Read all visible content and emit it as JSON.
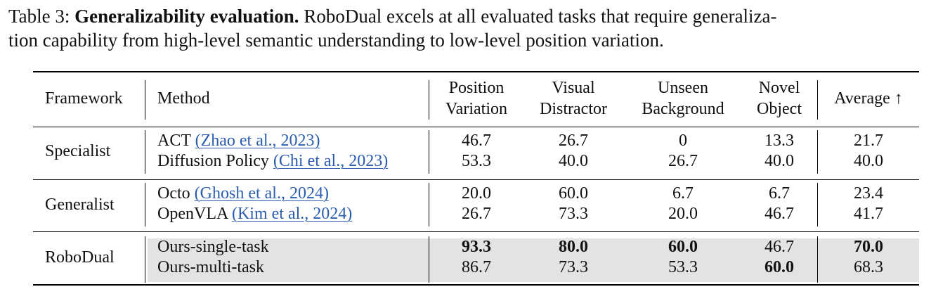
{
  "caption": {
    "prefix": "Table 3: ",
    "bold_title": "Generalizability evaluation.",
    "line1_rest": " RoboDual excels at all evaluated tasks that require generaliza-",
    "line2": "tion capability from high-level semantic understanding to low-level position variation."
  },
  "table": {
    "headers": {
      "framework": "Framework",
      "method": "Method",
      "position": [
        "Position",
        "Variation"
      ],
      "visual": [
        "Visual",
        "Distractor"
      ],
      "unseen": [
        "Unseen",
        "Background"
      ],
      "novel": [
        "Novel",
        "Object"
      ],
      "average": "Average ↑"
    },
    "groups": [
      {
        "framework": "Specialist",
        "rows": [
          {
            "method": "ACT",
            "citation": "(Zhao et al., 2023)",
            "values": [
              "46.7",
              "26.7",
              "0",
              "13.3",
              "21.7"
            ]
          },
          {
            "method": "Diffusion Policy",
            "citation": "(Chi et al., 2023)",
            "values": [
              "53.3",
              "40.0",
              "26.7",
              "40.0",
              "40.0"
            ]
          }
        ]
      },
      {
        "framework": "Generalist",
        "rows": [
          {
            "method": "Octo",
            "citation": "(Ghosh et al., 2024)",
            "values": [
              "20.0",
              "60.0",
              "6.7",
              "6.7",
              "23.4"
            ]
          },
          {
            "method": "OpenVLA",
            "citation": "(Kim et al., 2024)",
            "values": [
              "26.7",
              "73.3",
              "20.0",
              "46.7",
              "41.7"
            ]
          }
        ]
      },
      {
        "framework": "RoboDual",
        "rows": [
          {
            "method": "Ours-single-task",
            "citation": "",
            "values": [
              "93.3",
              "80.0",
              "60.0",
              "46.7",
              "70.0"
            ]
          },
          {
            "method": "Ours-multi-task",
            "citation": "",
            "values": [
              "86.7",
              "73.3",
              "53.3",
              "60.0",
              "68.3"
            ]
          }
        ]
      }
    ]
  }
}
